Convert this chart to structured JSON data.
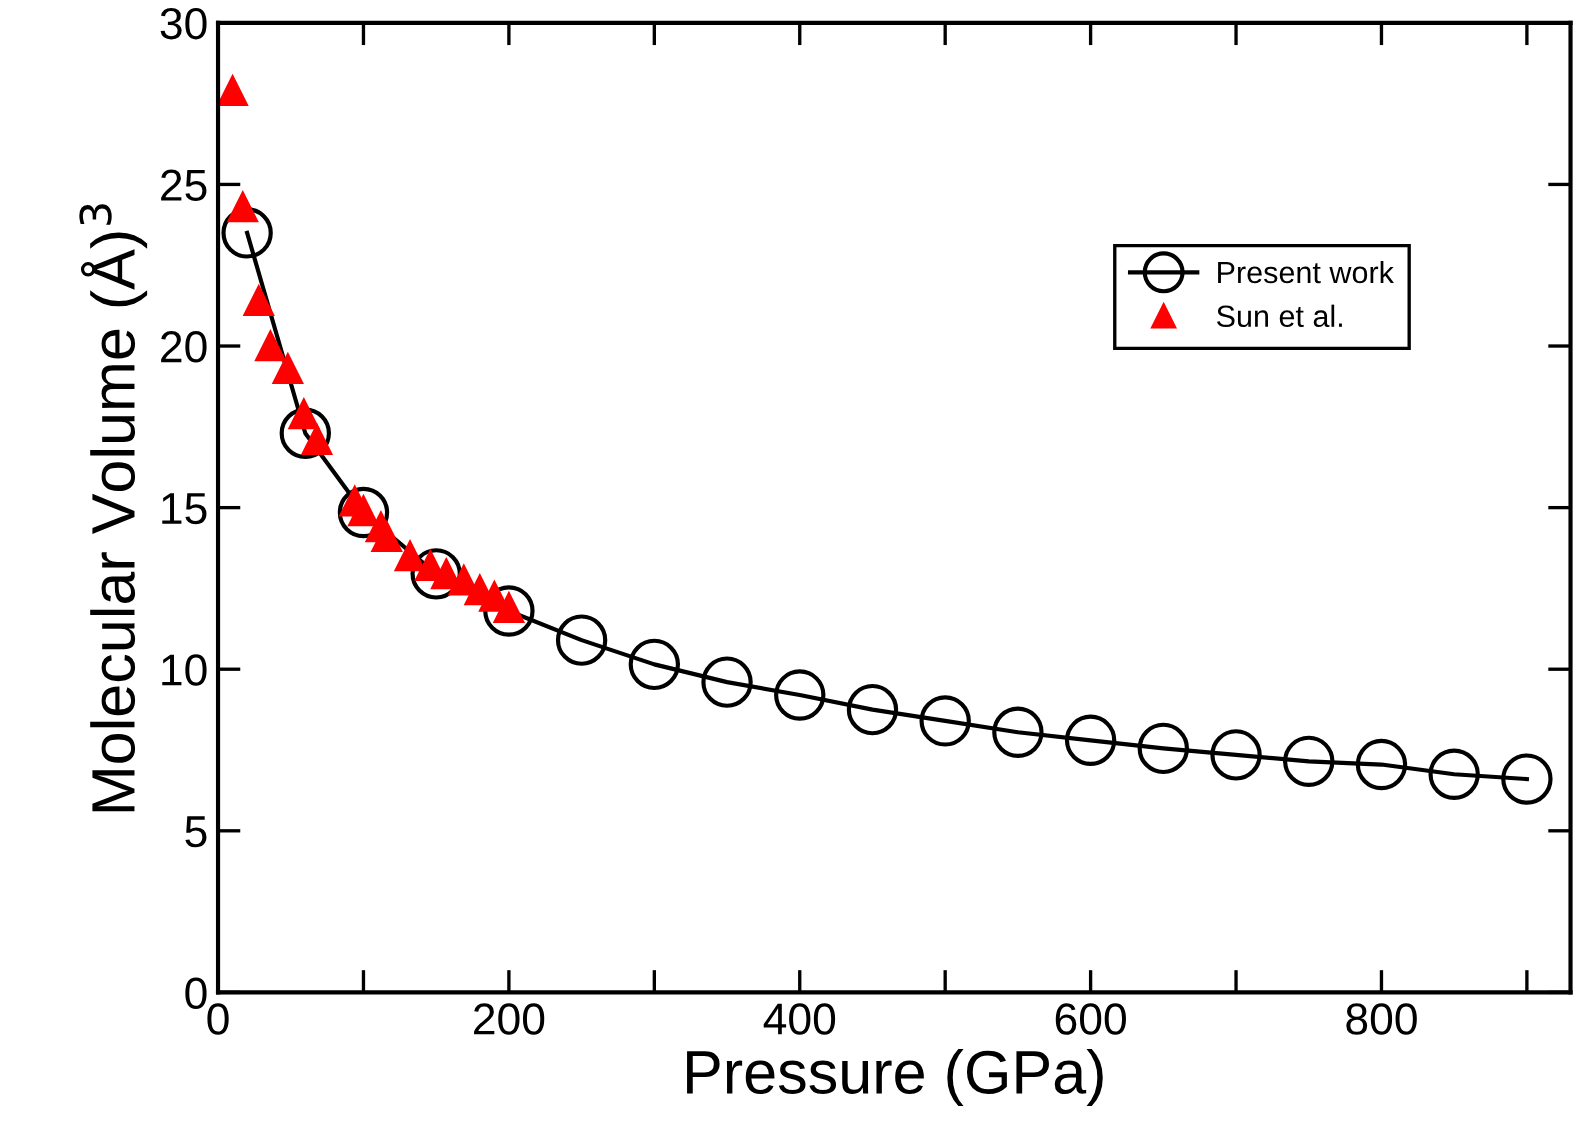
{
  "chart_data": {
    "type": "line",
    "xlabel": "Pressure (GPa)",
    "ylabel": "Molecular Volume (Å)$^{3}$",
    "xlim": [
      0,
      930
    ],
    "xticks": [
      0,
      {
        "value": 100,
        "label": null
      },
      200,
      {
        "value": 300,
        "label": null
      },
      400,
      {
        "value": 500,
        "label": null
      },
      600,
      {
        "value": 700,
        "label": null
      },
      800,
      {
        "value": 900,
        "label": null
      }
    ],
    "ylim": [
      0,
      30
    ],
    "yticks": [
      0,
      5,
      10,
      15,
      20,
      25,
      30
    ],
    "series": [
      {
        "name": "Present work",
        "color": "#000000",
        "marker": "circle",
        "x": [
          20,
          60,
          100,
          150,
          200,
          250,
          300,
          350,
          400,
          450,
          500,
          550,
          600,
          650,
          700,
          750,
          800,
          850,
          900
        ],
        "values": [
          23.5,
          17.3,
          14.85,
          12.95,
          11.8,
          10.9,
          10.15,
          9.6,
          9.2,
          8.75,
          8.4,
          8.05,
          7.8,
          7.55,
          7.35,
          7.15,
          7.05,
          6.75,
          6.6
        ]
      },
      {
        "name": "Sun et al.",
        "type": "scatter",
        "color": "#ff0000",
        "marker": "triangle",
        "x": [
          10,
          17,
          28,
          36,
          48,
          59,
          68,
          94,
          100,
          112,
          116,
          132,
          146,
          157,
          169,
          180,
          190,
          200
        ],
        "values": [
          27.9,
          24.3,
          21.4,
          20.0,
          19.3,
          17.9,
          17.1,
          15.2,
          14.9,
          14.4,
          14.1,
          13.5,
          13.2,
          12.95,
          12.75,
          12.45,
          12.25,
          11.9
        ]
      }
    ],
    "legend": "top right",
    "grid": false
  }
}
